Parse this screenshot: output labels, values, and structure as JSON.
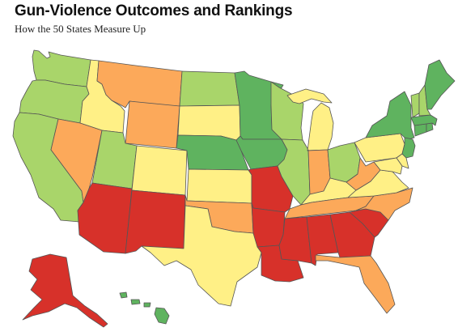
{
  "header": {
    "title": "Gun-Violence Outcomes and Rankings",
    "subtitle": "How the 50 States Measure Up"
  },
  "legend_colors": {
    "best": "#5fb35f",
    "good": "#a9d56a",
    "middle": "#fff086",
    "poor": "#fca95a",
    "worst": "#d7312a"
  },
  "states": [
    {
      "code": "WA",
      "category": "good"
    },
    {
      "code": "OR",
      "category": "good"
    },
    {
      "code": "CA",
      "category": "good"
    },
    {
      "code": "ID",
      "category": "middle"
    },
    {
      "code": "NV",
      "category": "poor"
    },
    {
      "code": "MT",
      "category": "poor"
    },
    {
      "code": "WY",
      "category": "poor"
    },
    {
      "code": "UT",
      "category": "good"
    },
    {
      "code": "AZ",
      "category": "worst"
    },
    {
      "code": "CO",
      "category": "middle"
    },
    {
      "code": "NM",
      "category": "worst"
    },
    {
      "code": "ND",
      "category": "good"
    },
    {
      "code": "SD",
      "category": "middle"
    },
    {
      "code": "NE",
      "category": "best"
    },
    {
      "code": "KS",
      "category": "middle"
    },
    {
      "code": "OK",
      "category": "poor"
    },
    {
      "code": "TX",
      "category": "middle"
    },
    {
      "code": "MN",
      "category": "best"
    },
    {
      "code": "IA",
      "category": "best"
    },
    {
      "code": "MO",
      "category": "worst"
    },
    {
      "code": "AR",
      "category": "worst"
    },
    {
      "code": "LA",
      "category": "worst"
    },
    {
      "code": "WI",
      "category": "good"
    },
    {
      "code": "IL",
      "category": "good"
    },
    {
      "code": "MI",
      "category": "middle"
    },
    {
      "code": "IN",
      "category": "poor"
    },
    {
      "code": "OH",
      "category": "good"
    },
    {
      "code": "KY",
      "category": "middle"
    },
    {
      "code": "TN",
      "category": "poor"
    },
    {
      "code": "MS",
      "category": "worst"
    },
    {
      "code": "AL",
      "category": "worst"
    },
    {
      "code": "GA",
      "category": "worst"
    },
    {
      "code": "FL",
      "category": "poor"
    },
    {
      "code": "SC",
      "category": "worst"
    },
    {
      "code": "NC",
      "category": "poor"
    },
    {
      "code": "VA",
      "category": "middle"
    },
    {
      "code": "WV",
      "category": "poor"
    },
    {
      "code": "PA",
      "category": "middle"
    },
    {
      "code": "NY",
      "category": "best"
    },
    {
      "code": "MD",
      "category": "middle"
    },
    {
      "code": "DE",
      "category": "middle"
    },
    {
      "code": "NJ",
      "category": "best"
    },
    {
      "code": "CT",
      "category": "best"
    },
    {
      "code": "RI",
      "category": "best"
    },
    {
      "code": "MA",
      "category": "best"
    },
    {
      "code": "VT",
      "category": "good"
    },
    {
      "code": "NH",
      "category": "good"
    },
    {
      "code": "ME",
      "category": "best"
    },
    {
      "code": "AK",
      "category": "worst"
    },
    {
      "code": "HI",
      "category": "best"
    }
  ]
}
